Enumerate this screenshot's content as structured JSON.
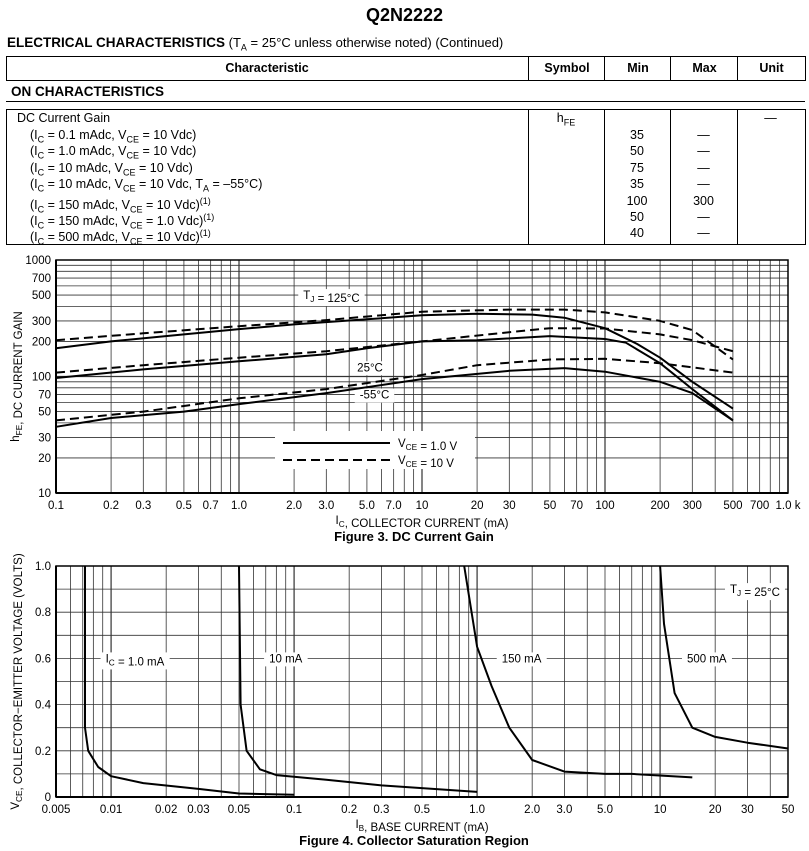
{
  "title": "Q2N2222",
  "section": {
    "heading": "ELECTRICAL CHARACTERISTICS",
    "cond_pre": "(T",
    "cond_sub": "A",
    "cond_post": " = 25°C unless otherwise noted) (Continued)"
  },
  "table": {
    "headers": [
      "Characteristic",
      "Symbol",
      "Min",
      "Max",
      "Unit"
    ],
    "group": "ON CHARACTERISTICS",
    "param": "DC Current Gain",
    "symbol": {
      "base": "h",
      "sub": "FE"
    },
    "unit": "—",
    "rows": [
      {
        "cond": [
          [
            "(I",
            ""
          ],
          [
            "C",
            "sub"
          ],
          [
            " = 0.1 mAdc, V",
            ""
          ],
          [
            "CE",
            "sub"
          ],
          [
            " = 10 Vdc)",
            ""
          ]
        ],
        "min": "35",
        "max": "—"
      },
      {
        "cond": [
          [
            "(I",
            ""
          ],
          [
            "C",
            "sub"
          ],
          [
            " = 1.0 mAdc, V",
            ""
          ],
          [
            "CE",
            "sub"
          ],
          [
            " = 10 Vdc)",
            ""
          ]
        ],
        "min": "50",
        "max": "—"
      },
      {
        "cond": [
          [
            "(I",
            ""
          ],
          [
            "C",
            "sub"
          ],
          [
            " = 10 mAdc, V",
            ""
          ],
          [
            "CE",
            "sub"
          ],
          [
            " = 10 Vdc)",
            ""
          ]
        ],
        "min": "75",
        "max": "—"
      },
      {
        "cond": [
          [
            "(I",
            ""
          ],
          [
            "C",
            "sub"
          ],
          [
            " = 10 mAdc, V",
            ""
          ],
          [
            "CE",
            "sub"
          ],
          [
            " = 10 Vdc, T",
            ""
          ],
          [
            "A",
            "sub"
          ],
          [
            " = –55°C)",
            ""
          ]
        ],
        "min": "35",
        "max": "—"
      },
      {
        "cond": [
          [
            "(I",
            ""
          ],
          [
            "C",
            "sub"
          ],
          [
            " = 150 mAdc, V",
            ""
          ],
          [
            "CE",
            "sub"
          ],
          [
            " = 10 Vdc)",
            ""
          ],
          [
            "(1)",
            "sup"
          ]
        ],
        "min": "100",
        "max": "300"
      },
      {
        "cond": [
          [
            "(I",
            ""
          ],
          [
            "C",
            "sub"
          ],
          [
            " = 150 mAdc, V",
            ""
          ],
          [
            "CE",
            "sub"
          ],
          [
            " = 1.0 Vdc)",
            ""
          ],
          [
            "(1)",
            "sup"
          ]
        ],
        "min": "50",
        "max": "—"
      },
      {
        "cond": [
          [
            "(I",
            ""
          ],
          [
            "C",
            "sub"
          ],
          [
            " = 500 mAdc, V",
            ""
          ],
          [
            "CE",
            "sub"
          ],
          [
            " = 10 Vdc)",
            ""
          ],
          [
            "(1)",
            "sup"
          ]
        ],
        "min": "40",
        "max": "—"
      }
    ]
  },
  "chart_data": [
    {
      "type": "line",
      "title": "Figure 3. DC Current Gain",
      "xlabel": [
        [
          "I",
          ""
        ],
        [
          "C",
          "sub"
        ],
        [
          ", COLLECTOR CURRENT (mA)",
          ""
        ]
      ],
      "ylabel": [
        [
          "h",
          ""
        ],
        [
          "FE",
          "sub"
        ],
        [
          ", DC CURRENT GAIN",
          ""
        ]
      ],
      "xscale": "log",
      "yscale": "log",
      "xlim": [
        0.1,
        1000
      ],
      "ylim": [
        10,
        1000
      ],
      "grid": true,
      "xticks": [
        [
          0.1,
          "0.1"
        ],
        [
          0.2,
          "0.2"
        ],
        [
          0.3,
          "0.3"
        ],
        [
          0.5,
          "0.5"
        ],
        [
          0.7,
          "0.7"
        ],
        [
          1,
          "1.0"
        ],
        [
          2,
          "2.0"
        ],
        [
          3,
          "3.0"
        ],
        [
          5,
          "5.0"
        ],
        [
          7,
          "7.0"
        ],
        [
          10,
          "10"
        ],
        [
          20,
          "20"
        ],
        [
          30,
          "30"
        ],
        [
          50,
          "50"
        ],
        [
          70,
          "70"
        ],
        [
          100,
          "100"
        ],
        [
          200,
          "200"
        ],
        [
          300,
          "300"
        ],
        [
          500,
          "500"
        ],
        [
          700,
          "700"
        ],
        [
          1000,
          "1.0 k"
        ]
      ],
      "yticks": [
        [
          10,
          "10"
        ],
        [
          20,
          "20"
        ],
        [
          30,
          "30"
        ],
        [
          50,
          "50"
        ],
        [
          70,
          "70"
        ],
        [
          100,
          "100"
        ],
        [
          200,
          "200"
        ],
        [
          300,
          "300"
        ],
        [
          500,
          "500"
        ],
        [
          700,
          "700"
        ],
        [
          1000,
          "1000"
        ]
      ],
      "legend": {
        "placement": "bottom-center",
        "entries": [
          {
            "style": "solid",
            "label": [
              [
                "V",
                ""
              ],
              [
                "CE",
                "sub"
              ],
              [
                " = 1.0 V",
                ""
              ]
            ]
          },
          {
            "style": "dashed",
            "label": [
              [
                "V",
                ""
              ],
              [
                "CE",
                "sub"
              ],
              [
                " = 10 V",
                ""
              ]
            ]
          }
        ]
      },
      "annotations": [
        {
          "text": [
            [
              "T",
              ""
            ],
            [
              "J",
              "sub"
            ],
            [
              " = 125°C",
              ""
            ]
          ],
          "at": [
            3.2,
            500
          ]
        },
        {
          "text": [
            [
              "25°C",
              ""
            ]
          ],
          "at": [
            5.2,
            120
          ]
        },
        {
          "text": [
            [
              "-55°C",
              ""
            ]
          ],
          "at": [
            5.5,
            70
          ]
        }
      ],
      "series": [
        {
          "name": "125°C, VCE = 1.0 V",
          "style": "solid",
          "points": [
            [
              0.1,
              175
            ],
            [
              0.2,
              200
            ],
            [
              0.5,
              230
            ],
            [
              1,
              255
            ],
            [
              2,
              280
            ],
            [
              5,
              310
            ],
            [
              10,
              335
            ],
            [
              20,
              345
            ],
            [
              40,
              340
            ],
            [
              60,
              320
            ],
            [
              100,
              260
            ],
            [
              150,
              190
            ],
            [
              200,
              145
            ],
            [
              300,
              90
            ],
            [
              500,
              53
            ]
          ]
        },
        {
          "name": "125°C, VCE = 10 V",
          "style": "dashed",
          "points": [
            [
              0.1,
              205
            ],
            [
              0.3,
              235
            ],
            [
              1,
              270
            ],
            [
              3,
              305
            ],
            [
              10,
              360
            ],
            [
              30,
              375
            ],
            [
              60,
              375
            ],
            [
              100,
              355
            ],
            [
              200,
              300
            ],
            [
              300,
              250
            ],
            [
              500,
              140
            ]
          ]
        },
        {
          "name": "25°C, VCE = 1.0 V",
          "style": "solid",
          "points": [
            [
              0.1,
              97
            ],
            [
              0.3,
              115
            ],
            [
              1,
              135
            ],
            [
              3,
              155
            ],
            [
              5,
              175
            ],
            [
              10,
              200
            ],
            [
              20,
              205
            ],
            [
              50,
              222
            ],
            [
              100,
              210
            ],
            [
              130,
              195
            ],
            [
              200,
              130
            ],
            [
              300,
              78
            ],
            [
              500,
              42
            ]
          ]
        },
        {
          "name": "25°C, VCE = 10 V",
          "style": "dashed",
          "points": [
            [
              0.1,
              108
            ],
            [
              0.3,
              125
            ],
            [
              1,
              145
            ],
            [
              3,
              165
            ],
            [
              10,
              200
            ],
            [
              30,
              240
            ],
            [
              50,
              260
            ],
            [
              100,
              258
            ],
            [
              200,
              230
            ],
            [
              300,
              205
            ],
            [
              500,
              165
            ]
          ]
        },
        {
          "name": "-55°C, VCE = 1.0 V",
          "style": "solid",
          "points": [
            [
              0.1,
              37
            ],
            [
              0.2,
              44
            ],
            [
              0.5,
              50
            ],
            [
              1,
              58
            ],
            [
              3,
              72
            ],
            [
              10,
              95
            ],
            [
              30,
              112
            ],
            [
              60,
              118
            ],
            [
              100,
              110
            ],
            [
              200,
              90
            ],
            [
              300,
              72
            ],
            [
              500,
              42
            ]
          ]
        },
        {
          "name": "-55°C, VCE = 10 V",
          "style": "dashed",
          "points": [
            [
              0.1,
              42
            ],
            [
              0.3,
              50
            ],
            [
              1,
              65
            ],
            [
              3,
              78
            ],
            [
              10,
              103
            ],
            [
              20,
              125
            ],
            [
              50,
              140
            ],
            [
              100,
              142
            ],
            [
              200,
              130
            ],
            [
              500,
              108
            ]
          ]
        }
      ]
    },
    {
      "type": "line",
      "title": "Figure 4. Collector Saturation Region",
      "xlabel": [
        [
          "I",
          ""
        ],
        [
          "B",
          "sub"
        ],
        [
          ", BASE CURRENT (mA)",
          ""
        ]
      ],
      "ylabel": [
        [
          "V",
          ""
        ],
        [
          "CE",
          "sub"
        ],
        [
          ", COLLECTOR−EMITTER VOLTAGE (VOLTS)",
          ""
        ]
      ],
      "xscale": "log",
      "yscale": "linear",
      "xlim": [
        0.005,
        50
      ],
      "ylim": [
        0,
        1.0
      ],
      "grid": true,
      "xticks": [
        [
          0.005,
          "0.005"
        ],
        [
          0.01,
          "0.01"
        ],
        [
          0.02,
          "0.02"
        ],
        [
          0.03,
          "0.03"
        ],
        [
          0.05,
          "0.05"
        ],
        [
          0.1,
          "0.1"
        ],
        [
          0.2,
          "0.2"
        ],
        [
          0.3,
          "0.3"
        ],
        [
          0.5,
          "0.5"
        ],
        [
          1,
          "1.0"
        ],
        [
          2,
          "2.0"
        ],
        [
          3,
          "3.0"
        ],
        [
          5,
          "5.0"
        ],
        [
          10,
          "10"
        ],
        [
          20,
          "20"
        ],
        [
          30,
          "30"
        ],
        [
          50,
          "50"
        ]
      ],
      "yticks": [
        [
          0,
          "0"
        ],
        [
          0.2,
          "0.2"
        ],
        [
          0.4,
          "0.4"
        ],
        [
          0.6,
          "0.6"
        ],
        [
          0.8,
          "0.8"
        ],
        [
          1.0,
          "1.0"
        ]
      ],
      "annotations": [
        {
          "text": [
            [
              "I",
              ""
            ],
            [
              "C",
              "sub"
            ],
            [
              " = 1.0 mA",
              ""
            ]
          ],
          "at": [
            0.0135,
            0.6
          ]
        },
        {
          "text": [
            [
              "10 mA",
              ""
            ]
          ],
          "at": [
            0.09,
            0.6
          ]
        },
        {
          "text": [
            [
              "150 mA",
              ""
            ]
          ],
          "at": [
            1.75,
            0.6
          ]
        },
        {
          "text": [
            [
              "500 mA",
              ""
            ]
          ],
          "at": [
            18,
            0.6
          ]
        },
        {
          "text": [
            [
              "T",
              ""
            ],
            [
              "J",
              "sub"
            ],
            [
              " = 25°C",
              ""
            ]
          ],
          "at": [
            33,
            0.9
          ]
        }
      ],
      "series": [
        {
          "name": "IC = 1.0 mA",
          "style": "solid",
          "points": [
            [
              0.0072,
              1.0
            ],
            [
              0.0072,
              0.3
            ],
            [
              0.0075,
              0.2
            ],
            [
              0.0085,
              0.13
            ],
            [
              0.01,
              0.09
            ],
            [
              0.015,
              0.06
            ],
            [
              0.03,
              0.035
            ],
            [
              0.05,
              0.015
            ],
            [
              0.1,
              0.01
            ]
          ]
        },
        {
          "name": "IC = 10 mA",
          "style": "solid",
          "points": [
            [
              0.05,
              1.0
            ],
            [
              0.051,
              0.4
            ],
            [
              0.055,
              0.2
            ],
            [
              0.065,
              0.12
            ],
            [
              0.08,
              0.095
            ],
            [
              0.15,
              0.075
            ],
            [
              0.3,
              0.05
            ],
            [
              1,
              0.022
            ]
          ]
        },
        {
          "name": "IC = 150 mA",
          "style": "solid",
          "points": [
            [
              0.85,
              1.0
            ],
            [
              1.0,
              0.65
            ],
            [
              1.2,
              0.48
            ],
            [
              1.5,
              0.3
            ],
            [
              2,
              0.16
            ],
            [
              3,
              0.11
            ],
            [
              5,
              0.1
            ],
            [
              7,
              0.1
            ],
            [
              15,
              0.085
            ]
          ]
        },
        {
          "name": "IC = 500 mA",
          "style": "solid",
          "points": [
            [
              10,
              1.0
            ],
            [
              10.5,
              0.75
            ],
            [
              12,
              0.45
            ],
            [
              15,
              0.3
            ],
            [
              20,
              0.26
            ],
            [
              30,
              0.235
            ],
            [
              50,
              0.21
            ]
          ]
        }
      ]
    }
  ]
}
